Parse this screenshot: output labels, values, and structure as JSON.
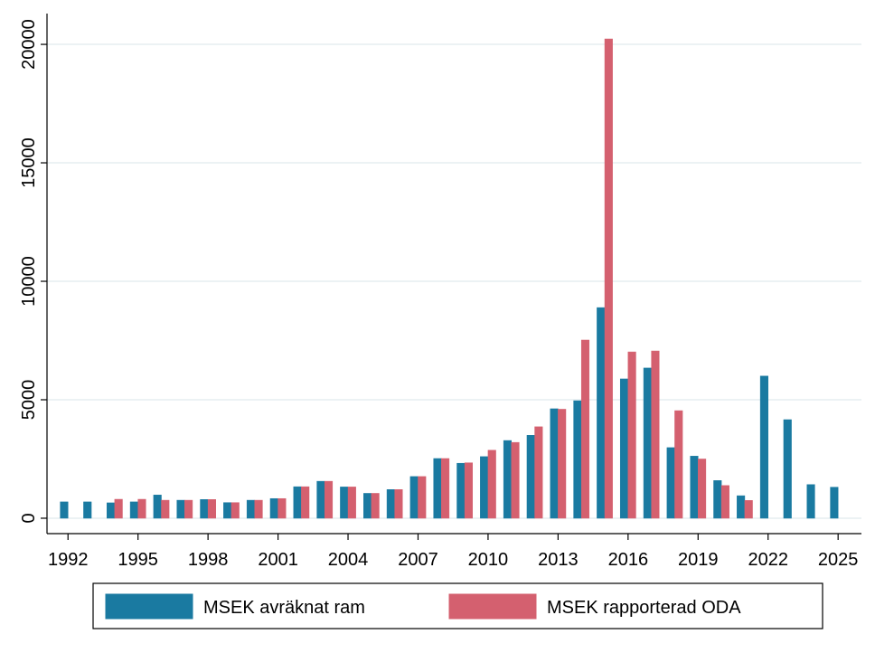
{
  "chart_data": {
    "type": "bar",
    "x": [
      1992,
      1993,
      1994,
      1995,
      1996,
      1997,
      1998,
      1999,
      2000,
      2001,
      2002,
      2003,
      2004,
      2005,
      2006,
      2007,
      2008,
      2009,
      2010,
      2011,
      2012,
      2013,
      2014,
      2015,
      2016,
      2017,
      2018,
      2019,
      2020,
      2021,
      2022,
      2023,
      2024,
      2025
    ],
    "series": [
      {
        "name": "MSEK avräknat ram",
        "color": "#1a7aa1",
        "values": [
          690,
          690,
          650,
          690,
          980,
          760,
          790,
          660,
          760,
          830,
          1330,
          1560,
          1320,
          1050,
          1210,
          1760,
          2520,
          2320,
          2600,
          3280,
          3500,
          4620,
          4960,
          8890,
          5880,
          6340,
          2980,
          2620,
          1590,
          950,
          6000,
          4160,
          1420,
          1310
        ]
      },
      {
        "name": "MSEK rapporterad ODA",
        "color": "#d4606f",
        "values": [
          null,
          null,
          800,
          800,
          760,
          760,
          790,
          660,
          760,
          830,
          1330,
          1560,
          1320,
          1050,
          1210,
          1760,
          2520,
          2340,
          2870,
          3200,
          3860,
          4600,
          7520,
          20230,
          7020,
          7060,
          4540,
          2500,
          1380,
          750,
          null,
          null,
          null,
          null
        ]
      }
    ],
    "xlim": [
      1991.1,
      2026
    ],
    "xticks": [
      1992,
      1995,
      1998,
      2001,
      2004,
      2007,
      2010,
      2013,
      2016,
      2019,
      2022,
      2025
    ],
    "ylim": [
      -650,
      21300
    ],
    "yticks": [
      0,
      5000,
      10000,
      15000,
      20000
    ],
    "grid": true
  }
}
